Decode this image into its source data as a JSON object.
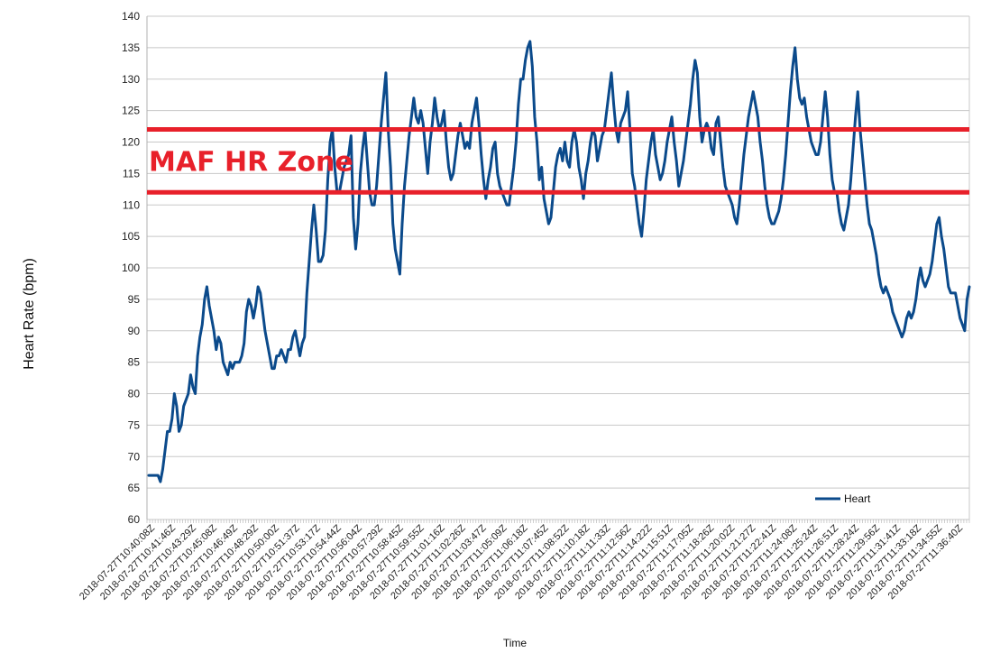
{
  "chart_data": {
    "type": "line",
    "title": "",
    "xlabel": "Time",
    "ylabel": "Heart Rate (bpm)",
    "ylim": [
      60,
      140
    ],
    "ytick_step": 5,
    "grid": true,
    "legend_position": "bottom-right",
    "x_tick_labels": [
      "2018-07-27T10:40:08Z",
      "2018-07-27T10:41:46Z",
      "2018-07-27T10:43:29Z",
      "2018-07-27T10:45:08Z",
      "2018-07-27T10:46:49Z",
      "2018-07-27T10:48:29Z",
      "2018-07-27T10:50:00Z",
      "2018-07-27T10:51:37Z",
      "2018-07-27T10:53:17Z",
      "2018-07-27T10:54:44Z",
      "2018-07-27T10:56:04Z",
      "2018-07-27T10:57:29Z",
      "2018-07-27T10:58:45Z",
      "2018-07-27T10:59:55Z",
      "2018-07-27T11:01:16Z",
      "2018-07-27T11:02:26Z",
      "2018-07-27T11:03:47Z",
      "2018-07-27T11:05:09Z",
      "2018-07-27T11:06:18Z",
      "2018-07-27T11:07:45Z",
      "2018-07-27T11:08:52Z",
      "2018-07-27T11:10:18Z",
      "2018-07-27T11:11:33Z",
      "2018-07-27T11:12:56Z",
      "2018-07-27T11:14:22Z",
      "2018-07-27T11:15:51Z",
      "2018-07-27T11:17:05Z",
      "2018-07-27T11:18:26Z",
      "2018-07-27T11:20:02Z",
      "2018-07-27T11:21:27Z",
      "2018-07-27T11:22:41Z",
      "2018-07-27T11:24:08Z",
      "2018-07-27T11:25:24Z",
      "2018-07-27T11:26:51Z",
      "2018-07-27T11:28:24Z",
      "2018-07-27T11:29:56Z",
      "2018-07-27T11:31:41Z",
      "2018-07-27T11:33:18Z",
      "2018-07-27T11:34:55Z",
      "2018-07-27T11:36:40Z"
    ],
    "series": [
      {
        "name": "Heart",
        "color": "#0b4a8b",
        "values": [
          67,
          67,
          67,
          67,
          67,
          66,
          68,
          71,
          74,
          74,
          76,
          80,
          78,
          74,
          75,
          78,
          79,
          80,
          83,
          81,
          80,
          86,
          89,
          91,
          95,
          97,
          94,
          92,
          90,
          87,
          89,
          88,
          85,
          84,
          83,
          85,
          84,
          85,
          85,
          85,
          86,
          88,
          93,
          95,
          94,
          92,
          94,
          97,
          96,
          93,
          90,
          88,
          86,
          84,
          84,
          86,
          86,
          87,
          86,
          85,
          87,
          87,
          89,
          90,
          88,
          86,
          88,
          89,
          96,
          101,
          106,
          110,
          106,
          101,
          101,
          102,
          106,
          114,
          120,
          122,
          116,
          112,
          112,
          114,
          116,
          117,
          118,
          121,
          108,
          103,
          107,
          115,
          119,
          122,
          117,
          112,
          110,
          110,
          113,
          118,
          123,
          127,
          131,
          122,
          116,
          107,
          103,
          101,
          99,
          107,
          113,
          117,
          121,
          124,
          127,
          124,
          123,
          125,
          123,
          119,
          115,
          120,
          123,
          127,
          124,
          122,
          123,
          125,
          120,
          116,
          114,
          115,
          118,
          121,
          123,
          121,
          119,
          120,
          119,
          123,
          125,
          127,
          123,
          118,
          114,
          111,
          114,
          116,
          119,
          120,
          115,
          113,
          112,
          111,
          110,
          110,
          113,
          116,
          120,
          126,
          130,
          130,
          133,
          135,
          136,
          132,
          124,
          120,
          114,
          116,
          111,
          109,
          107,
          108,
          112,
          116,
          118,
          119,
          117,
          120,
          117,
          116,
          120,
          122,
          120,
          116,
          114,
          111,
          115,
          117,
          120,
          122,
          121,
          117,
          119,
          121,
          122,
          125,
          128,
          131,
          126,
          122,
          120,
          123,
          124,
          125,
          128,
          122,
          115,
          113,
          110,
          107,
          105,
          109,
          114,
          117,
          120,
          122,
          118,
          116,
          114,
          115,
          117,
          120,
          122,
          124,
          120,
          117,
          113,
          115,
          117,
          120,
          123,
          126,
          130,
          133,
          131,
          124,
          120,
          122,
          123,
          122,
          119,
          118,
          123,
          124,
          120,
          116,
          113,
          112,
          111,
          110,
          108,
          107,
          110,
          114,
          118,
          121,
          124,
          126,
          128,
          126,
          124,
          120,
          117,
          113,
          110,
          108,
          107,
          107,
          108,
          109,
          111,
          114,
          118,
          123,
          128,
          132,
          135,
          130,
          127,
          126,
          127,
          124,
          122,
          120,
          119,
          118,
          118,
          120,
          124,
          128,
          124,
          118,
          114,
          112,
          112,
          109,
          107,
          106,
          108,
          110,
          114,
          119,
          124,
          128,
          122,
          118,
          114,
          110,
          107,
          106,
          104,
          102,
          99,
          97,
          96,
          97,
          96,
          95,
          93,
          92,
          91,
          90,
          89,
          90,
          92,
          93,
          92,
          93,
          95,
          98,
          100,
          98,
          97,
          98,
          99,
          101,
          104,
          107,
          108,
          105,
          103,
          100,
          97,
          96,
          96,
          96,
          94,
          92,
          91,
          90,
          95,
          97
        ]
      }
    ],
    "annotations": {
      "zone_label": "MAF HR Zone",
      "zone_upper": 122,
      "zone_lower": 112,
      "zone_color": "#e8202a"
    }
  }
}
